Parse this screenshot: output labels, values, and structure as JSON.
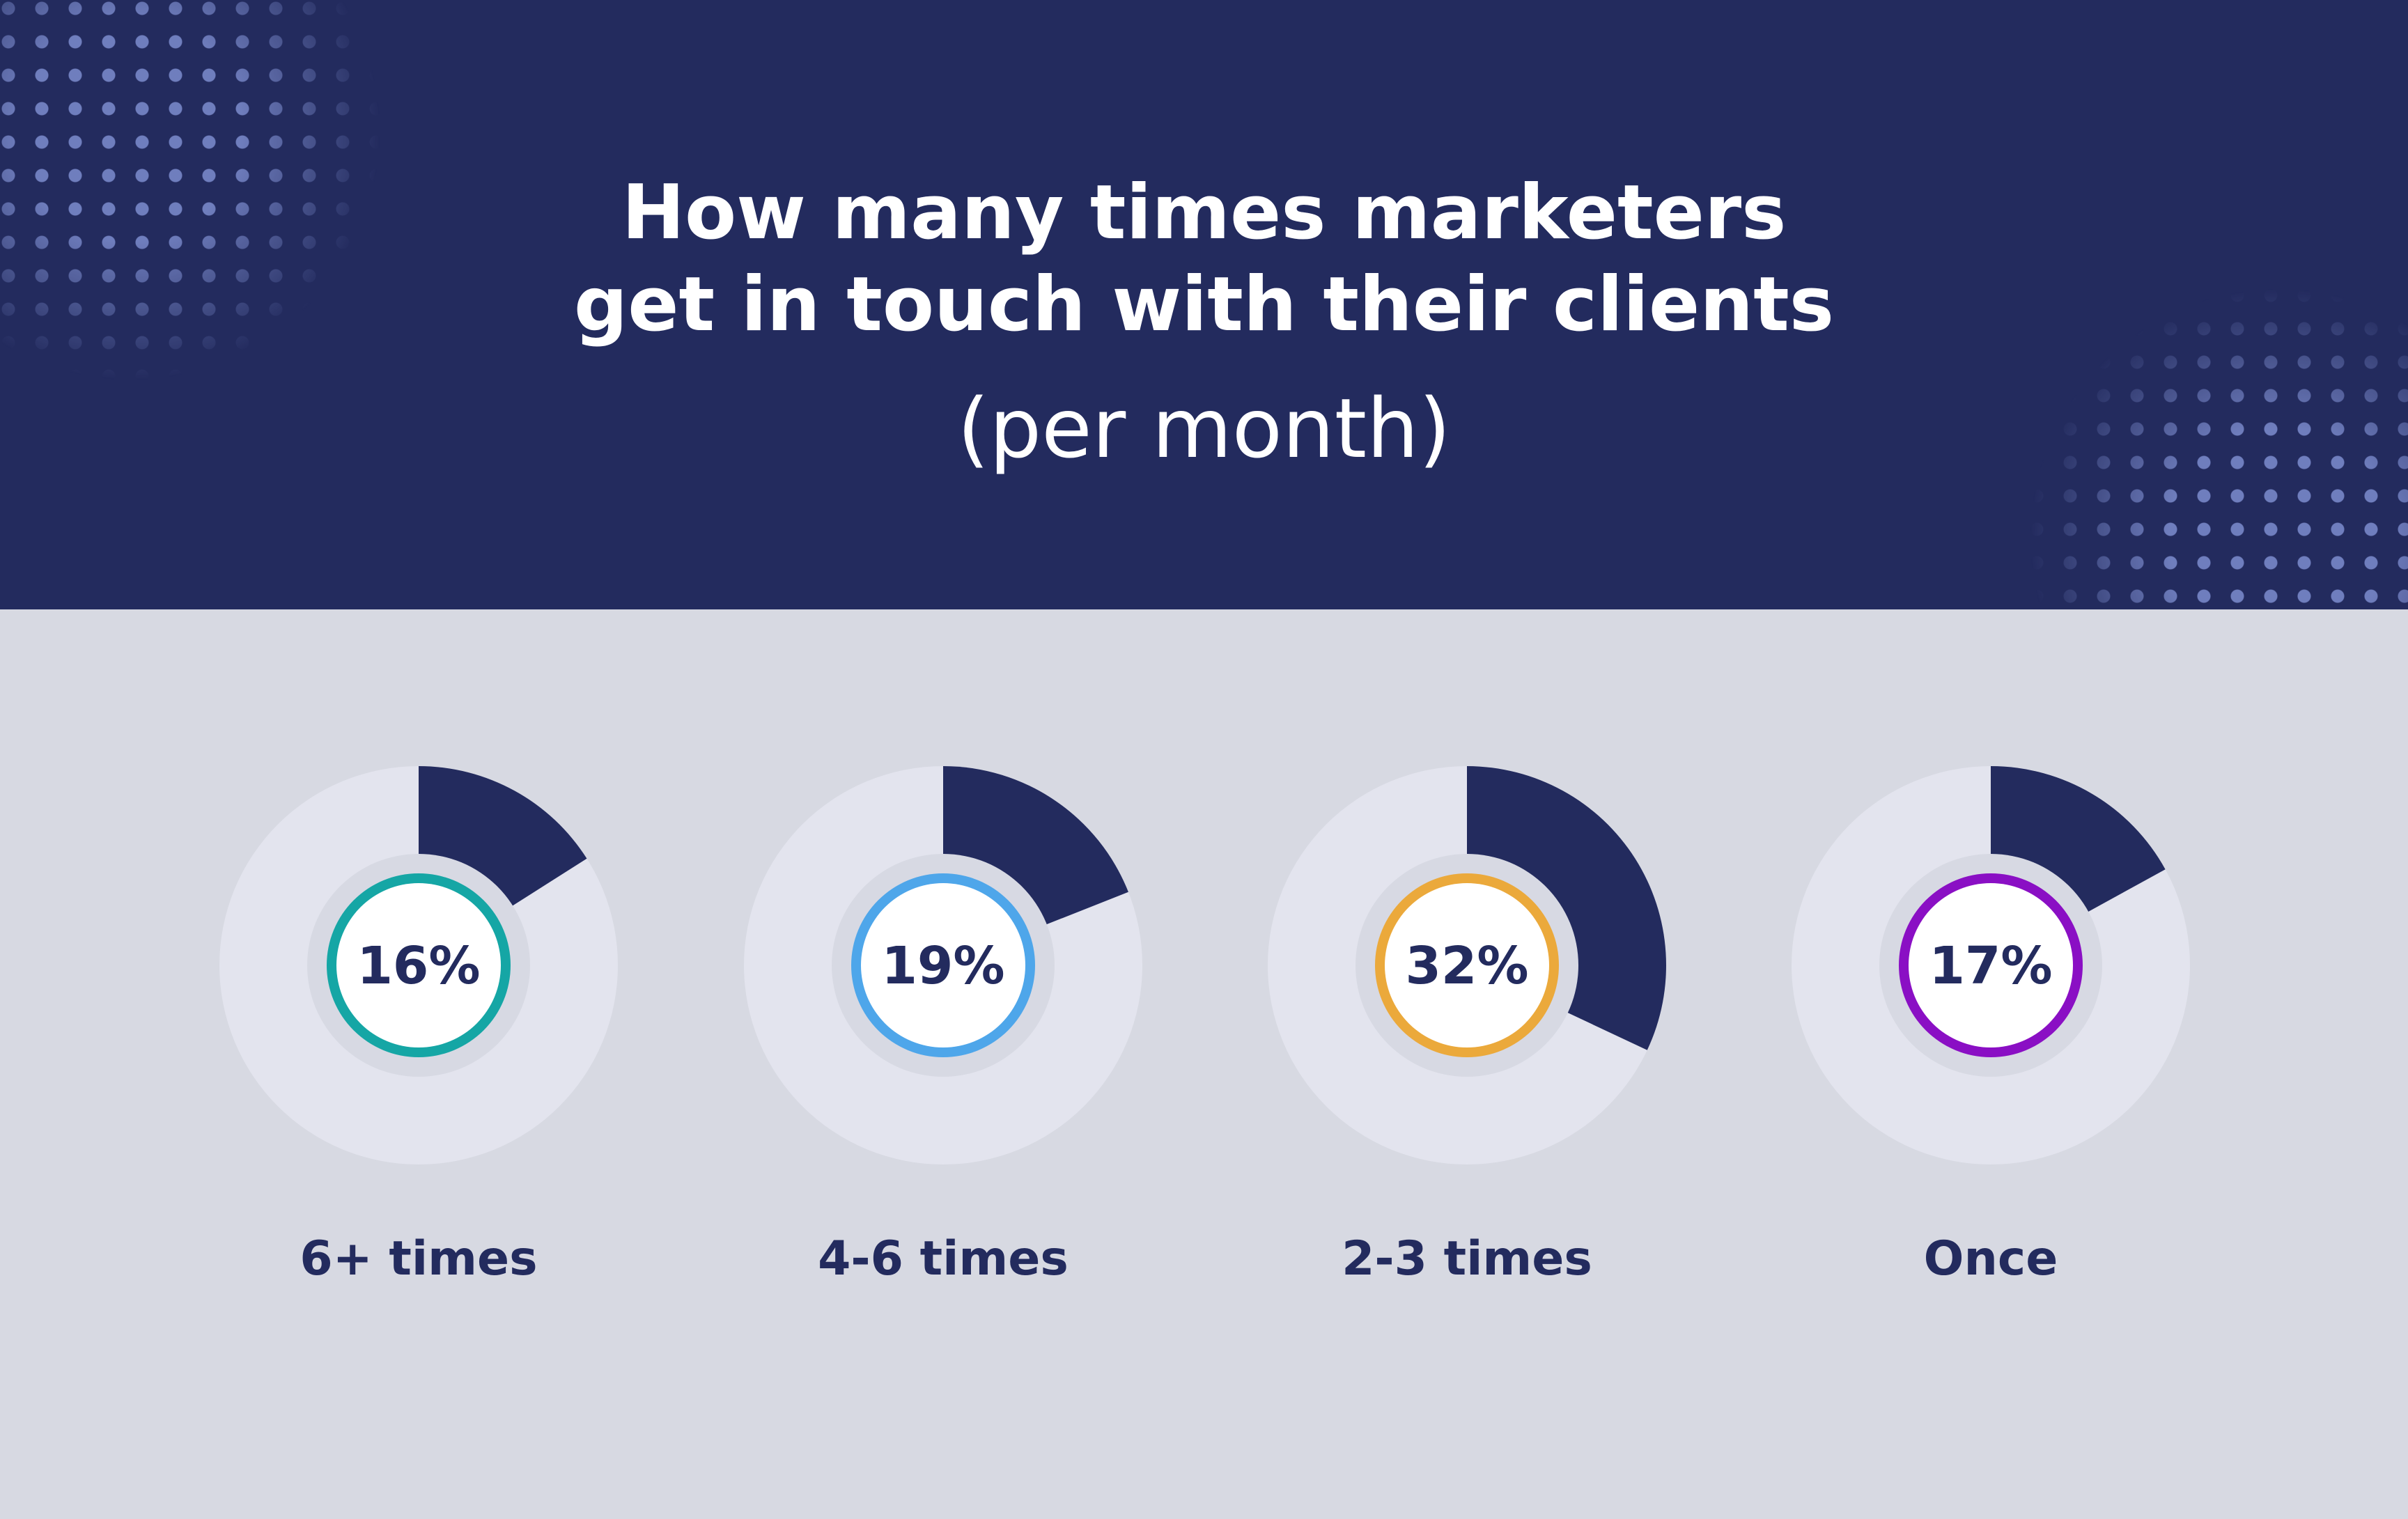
{
  "header": {
    "title_line1": "How many times marketers",
    "title_line2": "get in touch with their clients",
    "subtitle": "(per month)"
  },
  "colors": {
    "header_bg": "#232b5e",
    "page_bg": "#d7d9e2",
    "donut_track": "#e3e4ee",
    "donut_fill": "#232b5e"
  },
  "chart_data": {
    "type": "pie",
    "title": "How many times marketers get in touch with their clients (per month)",
    "categories": [
      "6+ times",
      "4-6 times",
      "2-3 times",
      "Once"
    ],
    "values": [
      16,
      19,
      32,
      17
    ],
    "value_labels": [
      "16%",
      "19%",
      "32%",
      "17%"
    ],
    "unit": "%",
    "ring_colors": [
      "#15a6a5",
      "#4ea6ea",
      "#eba93b",
      "#8a0fc4"
    ]
  }
}
